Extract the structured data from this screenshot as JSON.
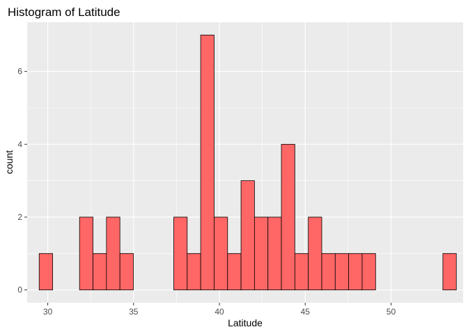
{
  "chart_data": {
    "type": "bar",
    "title": "Histogram of Latitude",
    "xlabel": "Latitude",
    "ylabel": "count",
    "xlim": [
      28.8,
      54.2
    ],
    "ylim": [
      -0.35,
      7.35
    ],
    "x_ticks": [
      30,
      35,
      40,
      45,
      50
    ],
    "y_ticks": [
      0,
      2,
      4,
      6
    ],
    "bin_width": 0.784,
    "bins_start": 29.5,
    "counts": [
      1,
      0,
      0,
      2,
      1,
      2,
      1,
      0,
      0,
      0,
      2,
      1,
      7,
      2,
      1,
      3,
      2,
      2,
      4,
      1,
      2,
      1,
      1,
      1,
      1,
      0,
      0,
      0,
      0,
      0,
      1
    ],
    "grid": true,
    "bar_fill": "#FF6666",
    "bar_outline": "#000000",
    "panel_background": "#EBEBEB",
    "grid_color": "#FFFFFF"
  }
}
